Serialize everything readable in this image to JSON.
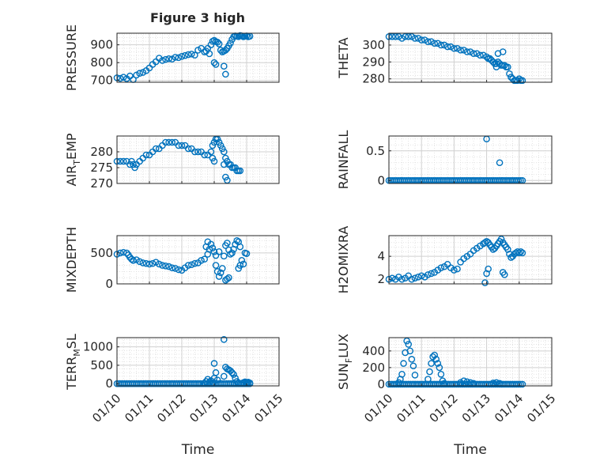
{
  "figure": {
    "title": "Figure 3 high",
    "marker_color": "#0072BD",
    "x_tick_labels": [
      "01/10",
      "01/11",
      "01/12",
      "01/13",
      "01/14",
      "01/15"
    ],
    "x_label": "Time"
  },
  "chart_data": [
    {
      "type": "scatter",
      "title": "Figure 3 high",
      "ylabel": "PRESSURE",
      "xlim": [
        0,
        5
      ],
      "ylim": [
        690,
        965
      ],
      "yticks": [
        700,
        800,
        900
      ],
      "ytick_labels": [
        "700",
        "800",
        "900"
      ],
      "x_tick_labels": [
        "",
        "",
        "",
        "",
        "",
        ""
      ],
      "xlabel": "",
      "x": [
        0.0,
        0.1,
        0.2,
        0.3,
        0.4,
        0.5,
        0.6,
        0.7,
        0.8,
        0.9,
        1.0,
        1.1,
        1.2,
        1.3,
        1.4,
        1.5,
        1.6,
        1.7,
        1.8,
        1.9,
        2.0,
        2.1,
        2.2,
        2.3,
        2.4,
        2.5,
        2.6,
        2.7,
        2.75,
        2.8,
        2.85,
        2.9,
        2.95,
        3.0,
        3.05,
        3.1,
        3.15,
        3.2,
        3.25,
        3.3,
        3.35,
        3.4,
        3.45,
        3.5,
        3.55,
        3.6,
        3.65,
        3.7,
        3.75,
        3.8,
        3.85,
        3.9,
        3.95,
        4.0,
        4.05,
        4.1,
        3.0,
        3.05,
        3.3,
        3.35
      ],
      "y": [
        715,
        712,
        718,
        710,
        725,
        705,
        730,
        740,
        745,
        755,
        770,
        790,
        805,
        825,
        812,
        818,
        822,
        820,
        830,
        828,
        835,
        840,
        845,
        848,
        842,
        870,
        880,
        860,
        865,
        880,
        850,
        900,
        920,
        925,
        918,
        915,
        905,
        870,
        860,
        865,
        870,
        880,
        895,
        910,
        930,
        945,
        950,
        948,
        946,
        952,
        950,
        945,
        948,
        950,
        945,
        948,
        800,
        790,
        780,
        735
      ]
    },
    {
      "type": "scatter",
      "ylabel": "THETA",
      "xlim": [
        0,
        5
      ],
      "ylim": [
        278,
        307
      ],
      "yticks": [
        280,
        290,
        300
      ],
      "ytick_labels": [
        "280",
        "290",
        "300"
      ],
      "x_tick_labels": [
        "",
        "",
        "",
        "",
        "",
        ""
      ],
      "xlabel": "",
      "x": [
        0.0,
        0.1,
        0.2,
        0.3,
        0.4,
        0.5,
        0.6,
        0.7,
        0.8,
        0.9,
        1.0,
        1.1,
        1.2,
        1.3,
        1.4,
        1.5,
        1.6,
        1.7,
        1.8,
        1.9,
        2.0,
        2.1,
        2.2,
        2.3,
        2.4,
        2.5,
        2.6,
        2.7,
        2.8,
        2.9,
        3.0,
        3.05,
        3.1,
        3.15,
        3.2,
        3.25,
        3.3,
        3.35,
        3.4,
        3.45,
        3.5,
        3.55,
        3.6,
        3.65,
        3.7,
        3.75,
        3.8,
        3.85,
        3.9,
        3.95,
        4.0,
        4.05,
        4.1,
        3.3,
        3.35,
        3.5
      ],
      "y": [
        305,
        305,
        305,
        305,
        304,
        305,
        305,
        305,
        304,
        304,
        303,
        303,
        302,
        302,
        301,
        301,
        300,
        300,
        299,
        299,
        298,
        298,
        297,
        297,
        296,
        296,
        295,
        295,
        294,
        294,
        293,
        292,
        292,
        291,
        290,
        289,
        289,
        290,
        289,
        288,
        288,
        288,
        287,
        287,
        283,
        281,
        280,
        279,
        279,
        279,
        280,
        279,
        279,
        287,
        295,
        296
      ]
    },
    {
      "type": "scatter",
      "ylabel": "AIR_TEMP",
      "xlim": [
        0,
        5
      ],
      "ylim": [
        270,
        285
      ],
      "yticks": [
        270,
        275,
        280
      ],
      "ytick_labels": [
        "270",
        "275",
        "280"
      ],
      "x_tick_labels": [
        "",
        "",
        "",
        "",
        "",
        ""
      ],
      "xlabel": "",
      "x": [
        0.0,
        0.1,
        0.2,
        0.3,
        0.4,
        0.45,
        0.5,
        0.55,
        0.6,
        0.7,
        0.8,
        0.9,
        1.0,
        1.1,
        1.2,
        1.3,
        1.4,
        1.5,
        1.6,
        1.7,
        1.8,
        1.9,
        2.0,
        2.1,
        2.2,
        2.3,
        2.4,
        2.5,
        2.6,
        2.7,
        2.8,
        2.9,
        2.95,
        3.0,
        3.05,
        3.1,
        3.15,
        3.2,
        3.25,
        3.3,
        3.35,
        3.4,
        3.45,
        3.5,
        3.55,
        3.6,
        3.65,
        3.7,
        3.75,
        3.8,
        2.95,
        3.0,
        3.3,
        3.35,
        3.4
      ],
      "y": [
        277,
        277,
        277,
        277,
        276,
        277,
        276,
        275,
        276,
        277,
        278,
        279,
        279,
        280,
        281,
        281,
        282,
        283,
        283,
        283,
        283,
        282,
        282,
        282,
        281,
        281,
        280,
        280,
        280,
        279,
        279,
        280,
        282,
        283,
        284,
        284,
        283,
        282,
        281,
        280,
        278,
        277,
        276,
        276,
        275,
        275,
        275,
        274,
        274,
        274,
        278,
        277,
        276,
        272,
        271
      ]
    },
    {
      "type": "scatter",
      "ylabel": "RAINFALL",
      "xlim": [
        0,
        5
      ],
      "ylim": [
        -0.05,
        0.75
      ],
      "yticks": [
        0,
        0.5
      ],
      "ytick_labels": [
        "0",
        "0.5"
      ],
      "x_tick_labels": [
        "",
        "",
        "",
        "",
        "",
        ""
      ],
      "xlabel": "",
      "x_range_zero": [
        0,
        4.1
      ],
      "zero_count": 70,
      "extra_points": [
        {
          "x": 3.0,
          "y": 0.7
        },
        {
          "x": 3.4,
          "y": 0.3
        }
      ]
    },
    {
      "type": "scatter",
      "ylabel": "MIXDEPTH",
      "xlim": [
        0,
        5
      ],
      "ylim": [
        0,
        780
      ],
      "yticks": [
        0,
        500
      ],
      "ytick_labels": [
        "0",
        "500"
      ],
      "x_tick_labels": [
        "",
        "",
        "",
        "",
        "",
        ""
      ],
      "xlabel": "",
      "x": [
        0.0,
        0.1,
        0.2,
        0.3,
        0.35,
        0.4,
        0.45,
        0.5,
        0.6,
        0.7,
        0.8,
        0.9,
        1.0,
        1.1,
        1.2,
        1.3,
        1.4,
        1.5,
        1.6,
        1.7,
        1.8,
        1.9,
        2.0,
        2.1,
        2.2,
        2.3,
        2.4,
        2.5,
        2.6,
        2.7,
        2.8,
        2.85,
        2.9,
        2.95,
        3.0,
        3.05,
        3.1,
        3.15,
        3.2,
        3.25,
        3.3,
        3.35,
        3.4,
        3.45,
        3.5,
        3.55,
        3.6,
        3.65,
        3.7,
        3.75,
        3.8,
        3.85,
        3.9,
        3.95,
        4.0,
        2.75,
        2.8,
        3.05,
        3.15,
        3.35,
        3.4,
        3.45,
        3.75,
        3.8
      ],
      "y": [
        480,
        500,
        510,
        500,
        470,
        430,
        400,
        380,
        390,
        360,
        340,
        330,
        320,
        330,
        350,
        320,
        300,
        290,
        280,
        260,
        250,
        230,
        220,
        260,
        300,
        310,
        330,
        340,
        380,
        400,
        480,
        560,
        640,
        580,
        520,
        300,
        200,
        120,
        180,
        250,
        450,
        620,
        660,
        550,
        480,
        500,
        560,
        640,
        700,
        680,
        600,
        380,
        320,
        500,
        490,
        600,
        680,
        460,
        520,
        60,
        80,
        100,
        250,
        300
      ]
    },
    {
      "type": "scatter",
      "ylabel": "H2OMIXRA",
      "xlim": [
        0,
        5
      ],
      "ylim": [
        1.6,
        5.8
      ],
      "yticks": [
        2,
        4
      ],
      "ytick_labels": [
        "2",
        "4"
      ],
      "x_tick_labels": [
        "",
        "",
        "",
        "",
        "",
        ""
      ],
      "xlabel": "",
      "x": [
        0.0,
        0.1,
        0.2,
        0.3,
        0.4,
        0.5,
        0.6,
        0.7,
        0.8,
        0.9,
        1.0,
        1.1,
        1.2,
        1.3,
        1.4,
        1.5,
        1.6,
        1.7,
        1.8,
        1.9,
        2.0,
        2.1,
        2.2,
        2.3,
        2.4,
        2.5,
        2.6,
        2.7,
        2.8,
        2.9,
        2.95,
        3.0,
        3.05,
        3.1,
        3.15,
        3.2,
        3.25,
        3.3,
        3.35,
        3.4,
        3.45,
        3.5,
        3.55,
        3.6,
        3.65,
        3.7,
        3.75,
        3.8,
        3.85,
        3.9,
        3.95,
        4.0,
        4.05,
        4.1,
        2.95,
        3.0,
        3.05,
        3.5,
        3.55
      ],
      "y": [
        2.0,
        2.1,
        2.0,
        2.2,
        2.0,
        2.1,
        2.3,
        2.0,
        2.1,
        2.2,
        2.3,
        2.2,
        2.4,
        2.5,
        2.6,
        2.8,
        3.0,
        3.1,
        3.3,
        3.0,
        2.8,
        2.9,
        3.5,
        3.8,
        4.0,
        4.2,
        4.5,
        4.7,
        4.9,
        5.1,
        5.2,
        5.3,
        5.2,
        5.0,
        4.8,
        4.6,
        4.7,
        4.9,
        5.1,
        5.3,
        5.5,
        5.2,
        5.0,
        4.8,
        4.6,
        4.2,
        3.9,
        4.0,
        4.2,
        4.3,
        4.4,
        4.3,
        4.4,
        4.3,
        1.7,
        2.5,
        2.9,
        2.6,
        2.4
      ]
    },
    {
      "type": "scatter",
      "ylabel": "TERR_MSL",
      "xlim": [
        0,
        5
      ],
      "ylim": [
        -60,
        1250
      ],
      "yticks": [
        0,
        500,
        1000
      ],
      "ytick_labels": [
        "0",
        "500",
        "1000"
      ],
      "x_tick_labels": [
        "01/10",
        "01/11",
        "01/12",
        "01/13",
        "01/14",
        "01/15"
      ],
      "xlabel": "Time",
      "x": [
        2.7,
        2.75,
        2.8,
        2.85,
        2.9,
        2.95,
        3.0,
        3.05,
        3.1,
        3.3,
        3.35,
        3.4,
        3.45,
        3.5,
        3.55,
        3.6,
        3.65,
        3.7,
        3.75,
        3.85,
        3.9,
        3.95,
        4.0,
        4.05,
        4.1,
        3.0,
        3.3
      ],
      "y": [
        10,
        60,
        120,
        40,
        80,
        20,
        150,
        300,
        100,
        200,
        450,
        400,
        380,
        350,
        300,
        250,
        150,
        60,
        20,
        10,
        30,
        50,
        30,
        40,
        20,
        550,
        1200
      ],
      "zero_x_range": [
        0,
        4.1
      ],
      "zero_count": 70
    },
    {
      "type": "scatter",
      "ylabel": "SUN_FLUX",
      "xlim": [
        0,
        5
      ],
      "ylim": [
        -20,
        560
      ],
      "yticks": [
        0,
        200,
        400
      ],
      "ytick_labels": [
        "0",
        "200",
        "400"
      ],
      "x_tick_labels": [
        "01/10",
        "01/11",
        "01/12",
        "01/13",
        "01/14",
        "01/15"
      ],
      "xlabel": "Time",
      "x": [
        0.3,
        0.35,
        0.4,
        0.45,
        0.5,
        0.55,
        0.6,
        0.65,
        0.7,
        0.75,
        0.8,
        1.2,
        1.25,
        1.3,
        1.35,
        1.4,
        1.45,
        1.5,
        1.55,
        1.6,
        1.65,
        1.7,
        2.2,
        2.3,
        2.4,
        2.5,
        2.6,
        3.2,
        3.3,
        3.4
      ],
      "y": [
        20,
        60,
        120,
        250,
        380,
        520,
        480,
        400,
        300,
        220,
        110,
        60,
        150,
        250,
        330,
        350,
        300,
        250,
        200,
        120,
        40,
        10,
        20,
        40,
        30,
        20,
        10,
        15,
        20,
        10
      ],
      "zero_x_range": [
        0,
        4.1
      ],
      "zero_count": 70
    }
  ]
}
